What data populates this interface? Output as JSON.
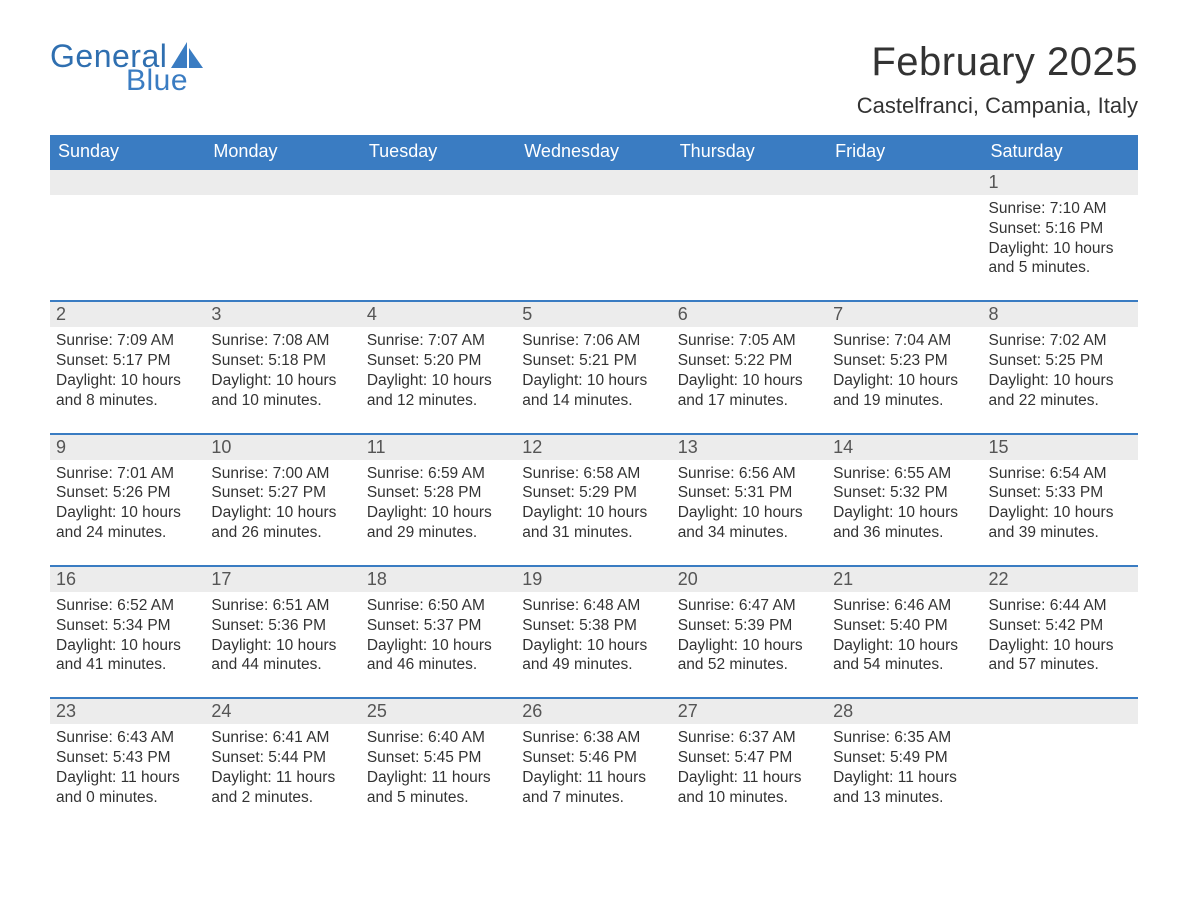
{
  "brand": {
    "word1": "General",
    "word2": "Blue",
    "color_primary": "#3a7cc2",
    "color_text": "#333333"
  },
  "title": "February 2025",
  "location": "Castelfranci, Campania, Italy",
  "colors": {
    "header_bg": "#3a7cc2",
    "header_text": "#ffffff",
    "daynum_bg": "#ececec",
    "row_divider": "#3a7cc2",
    "page_bg": "#ffffff"
  },
  "weekday_labels": [
    "Sunday",
    "Monday",
    "Tuesday",
    "Wednesday",
    "Thursday",
    "Friday",
    "Saturday"
  ],
  "weeks": [
    [
      null,
      null,
      null,
      null,
      null,
      null,
      {
        "d": "1",
        "sr": "Sunrise: 7:10 AM",
        "ss": "Sunset: 5:16 PM",
        "dl": "Daylight: 10 hours and 5 minutes."
      }
    ],
    [
      {
        "d": "2",
        "sr": "Sunrise: 7:09 AM",
        "ss": "Sunset: 5:17 PM",
        "dl": "Daylight: 10 hours and 8 minutes."
      },
      {
        "d": "3",
        "sr": "Sunrise: 7:08 AM",
        "ss": "Sunset: 5:18 PM",
        "dl": "Daylight: 10 hours and 10 minutes."
      },
      {
        "d": "4",
        "sr": "Sunrise: 7:07 AM",
        "ss": "Sunset: 5:20 PM",
        "dl": "Daylight: 10 hours and 12 minutes."
      },
      {
        "d": "5",
        "sr": "Sunrise: 7:06 AM",
        "ss": "Sunset: 5:21 PM",
        "dl": "Daylight: 10 hours and 14 minutes."
      },
      {
        "d": "6",
        "sr": "Sunrise: 7:05 AM",
        "ss": "Sunset: 5:22 PM",
        "dl": "Daylight: 10 hours and 17 minutes."
      },
      {
        "d": "7",
        "sr": "Sunrise: 7:04 AM",
        "ss": "Sunset: 5:23 PM",
        "dl": "Daylight: 10 hours and 19 minutes."
      },
      {
        "d": "8",
        "sr": "Sunrise: 7:02 AM",
        "ss": "Sunset: 5:25 PM",
        "dl": "Daylight: 10 hours and 22 minutes."
      }
    ],
    [
      {
        "d": "9",
        "sr": "Sunrise: 7:01 AM",
        "ss": "Sunset: 5:26 PM",
        "dl": "Daylight: 10 hours and 24 minutes."
      },
      {
        "d": "10",
        "sr": "Sunrise: 7:00 AM",
        "ss": "Sunset: 5:27 PM",
        "dl": "Daylight: 10 hours and 26 minutes."
      },
      {
        "d": "11",
        "sr": "Sunrise: 6:59 AM",
        "ss": "Sunset: 5:28 PM",
        "dl": "Daylight: 10 hours and 29 minutes."
      },
      {
        "d": "12",
        "sr": "Sunrise: 6:58 AM",
        "ss": "Sunset: 5:29 PM",
        "dl": "Daylight: 10 hours and 31 minutes."
      },
      {
        "d": "13",
        "sr": "Sunrise: 6:56 AM",
        "ss": "Sunset: 5:31 PM",
        "dl": "Daylight: 10 hours and 34 minutes."
      },
      {
        "d": "14",
        "sr": "Sunrise: 6:55 AM",
        "ss": "Sunset: 5:32 PM",
        "dl": "Daylight: 10 hours and 36 minutes."
      },
      {
        "d": "15",
        "sr": "Sunrise: 6:54 AM",
        "ss": "Sunset: 5:33 PM",
        "dl": "Daylight: 10 hours and 39 minutes."
      }
    ],
    [
      {
        "d": "16",
        "sr": "Sunrise: 6:52 AM",
        "ss": "Sunset: 5:34 PM",
        "dl": "Daylight: 10 hours and 41 minutes."
      },
      {
        "d": "17",
        "sr": "Sunrise: 6:51 AM",
        "ss": "Sunset: 5:36 PM",
        "dl": "Daylight: 10 hours and 44 minutes."
      },
      {
        "d": "18",
        "sr": "Sunrise: 6:50 AM",
        "ss": "Sunset: 5:37 PM",
        "dl": "Daylight: 10 hours and 46 minutes."
      },
      {
        "d": "19",
        "sr": "Sunrise: 6:48 AM",
        "ss": "Sunset: 5:38 PM",
        "dl": "Daylight: 10 hours and 49 minutes."
      },
      {
        "d": "20",
        "sr": "Sunrise: 6:47 AM",
        "ss": "Sunset: 5:39 PM",
        "dl": "Daylight: 10 hours and 52 minutes."
      },
      {
        "d": "21",
        "sr": "Sunrise: 6:46 AM",
        "ss": "Sunset: 5:40 PM",
        "dl": "Daylight: 10 hours and 54 minutes."
      },
      {
        "d": "22",
        "sr": "Sunrise: 6:44 AM",
        "ss": "Sunset: 5:42 PM",
        "dl": "Daylight: 10 hours and 57 minutes."
      }
    ],
    [
      {
        "d": "23",
        "sr": "Sunrise: 6:43 AM",
        "ss": "Sunset: 5:43 PM",
        "dl": "Daylight: 11 hours and 0 minutes."
      },
      {
        "d": "24",
        "sr": "Sunrise: 6:41 AM",
        "ss": "Sunset: 5:44 PM",
        "dl": "Daylight: 11 hours and 2 minutes."
      },
      {
        "d": "25",
        "sr": "Sunrise: 6:40 AM",
        "ss": "Sunset: 5:45 PM",
        "dl": "Daylight: 11 hours and 5 minutes."
      },
      {
        "d": "26",
        "sr": "Sunrise: 6:38 AM",
        "ss": "Sunset: 5:46 PM",
        "dl": "Daylight: 11 hours and 7 minutes."
      },
      {
        "d": "27",
        "sr": "Sunrise: 6:37 AM",
        "ss": "Sunset: 5:47 PM",
        "dl": "Daylight: 11 hours and 10 minutes."
      },
      {
        "d": "28",
        "sr": "Sunrise: 6:35 AM",
        "ss": "Sunset: 5:49 PM",
        "dl": "Daylight: 11 hours and 13 minutes."
      },
      null
    ]
  ]
}
